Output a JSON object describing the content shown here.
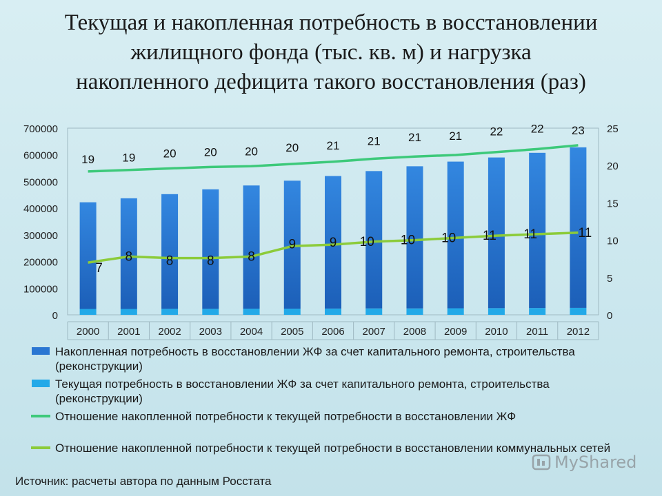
{
  "title_lines": [
    "Текущая и накопленная потребность в восстановлении",
    "жилищного фонда (тыс. кв. м) и нагрузка",
    "накопленного дефицита такого восстановления (раз)"
  ],
  "chart_data": {
    "type": "bar",
    "categories": [
      "2000",
      "2001",
      "2002",
      "2003",
      "2004",
      "2005",
      "2006",
      "2007",
      "2008",
      "2009",
      "2010",
      "2011",
      "2012"
    ],
    "y_left": {
      "min": 0,
      "max": 700000,
      "ticks": [
        0,
        100000,
        200000,
        300000,
        400000,
        500000,
        600000,
        700000
      ]
    },
    "y_right": {
      "min": 0,
      "max": 25,
      "ticks": [
        0,
        5,
        10,
        15,
        20,
        25
      ]
    },
    "series": [
      {
        "name": "Накопленная потребность в восстановлении ЖФ за счет капитального ремонта, строительства (реконструкции)",
        "kind": "stacked-bar",
        "axis": "left",
        "color": "#2a76d2",
        "values": [
          400000,
          415000,
          430000,
          448000,
          462000,
          480000,
          497000,
          515000,
          533000,
          550000,
          565000,
          582000,
          602000
        ]
      },
      {
        "name": "Текущая потребность в восстановлении ЖФ за счет капитального ремонта, строительства (реконструкции)",
        "kind": "stacked-bar",
        "axis": "left",
        "color": "#22a9e8",
        "values": [
          22000,
          22000,
          22500,
          22500,
          23000,
          23000,
          23500,
          24000,
          24000,
          24500,
          25000,
          25500,
          26000
        ]
      },
      {
        "name": "Отношение накопленной потребности к текущей потребности в восстановлении ЖФ",
        "kind": "line",
        "axis": "right",
        "color": "#3dc97a",
        "values": [
          19.2,
          19.4,
          19.6,
          19.8,
          19.9,
          20.2,
          20.5,
          20.9,
          21.2,
          21.4,
          21.8,
          22.2,
          22.7
        ],
        "labels": [
          "19",
          "19",
          "20",
          "20",
          "20",
          "20",
          "21",
          "21",
          "21",
          "21",
          "22",
          "22",
          "23"
        ]
      },
      {
        "name": "Отношение накопленной потребности к текущей потребности в восстановлении коммунальных сетей",
        "kind": "line",
        "axis": "right",
        "color": "#8ccb3a",
        "values": [
          7.0,
          7.8,
          7.6,
          7.6,
          7.8,
          9.2,
          9.4,
          9.8,
          10.0,
          10.3,
          10.6,
          10.8,
          11.0
        ],
        "labels": [
          "7",
          "8",
          "8",
          "8",
          "8",
          "9",
          "9",
          "10",
          "10",
          "10",
          "11",
          "11",
          "11"
        ]
      }
    ]
  },
  "source_text": "Источник: расчеты автора по данным Росстата",
  "watermark_text": "MyShared"
}
